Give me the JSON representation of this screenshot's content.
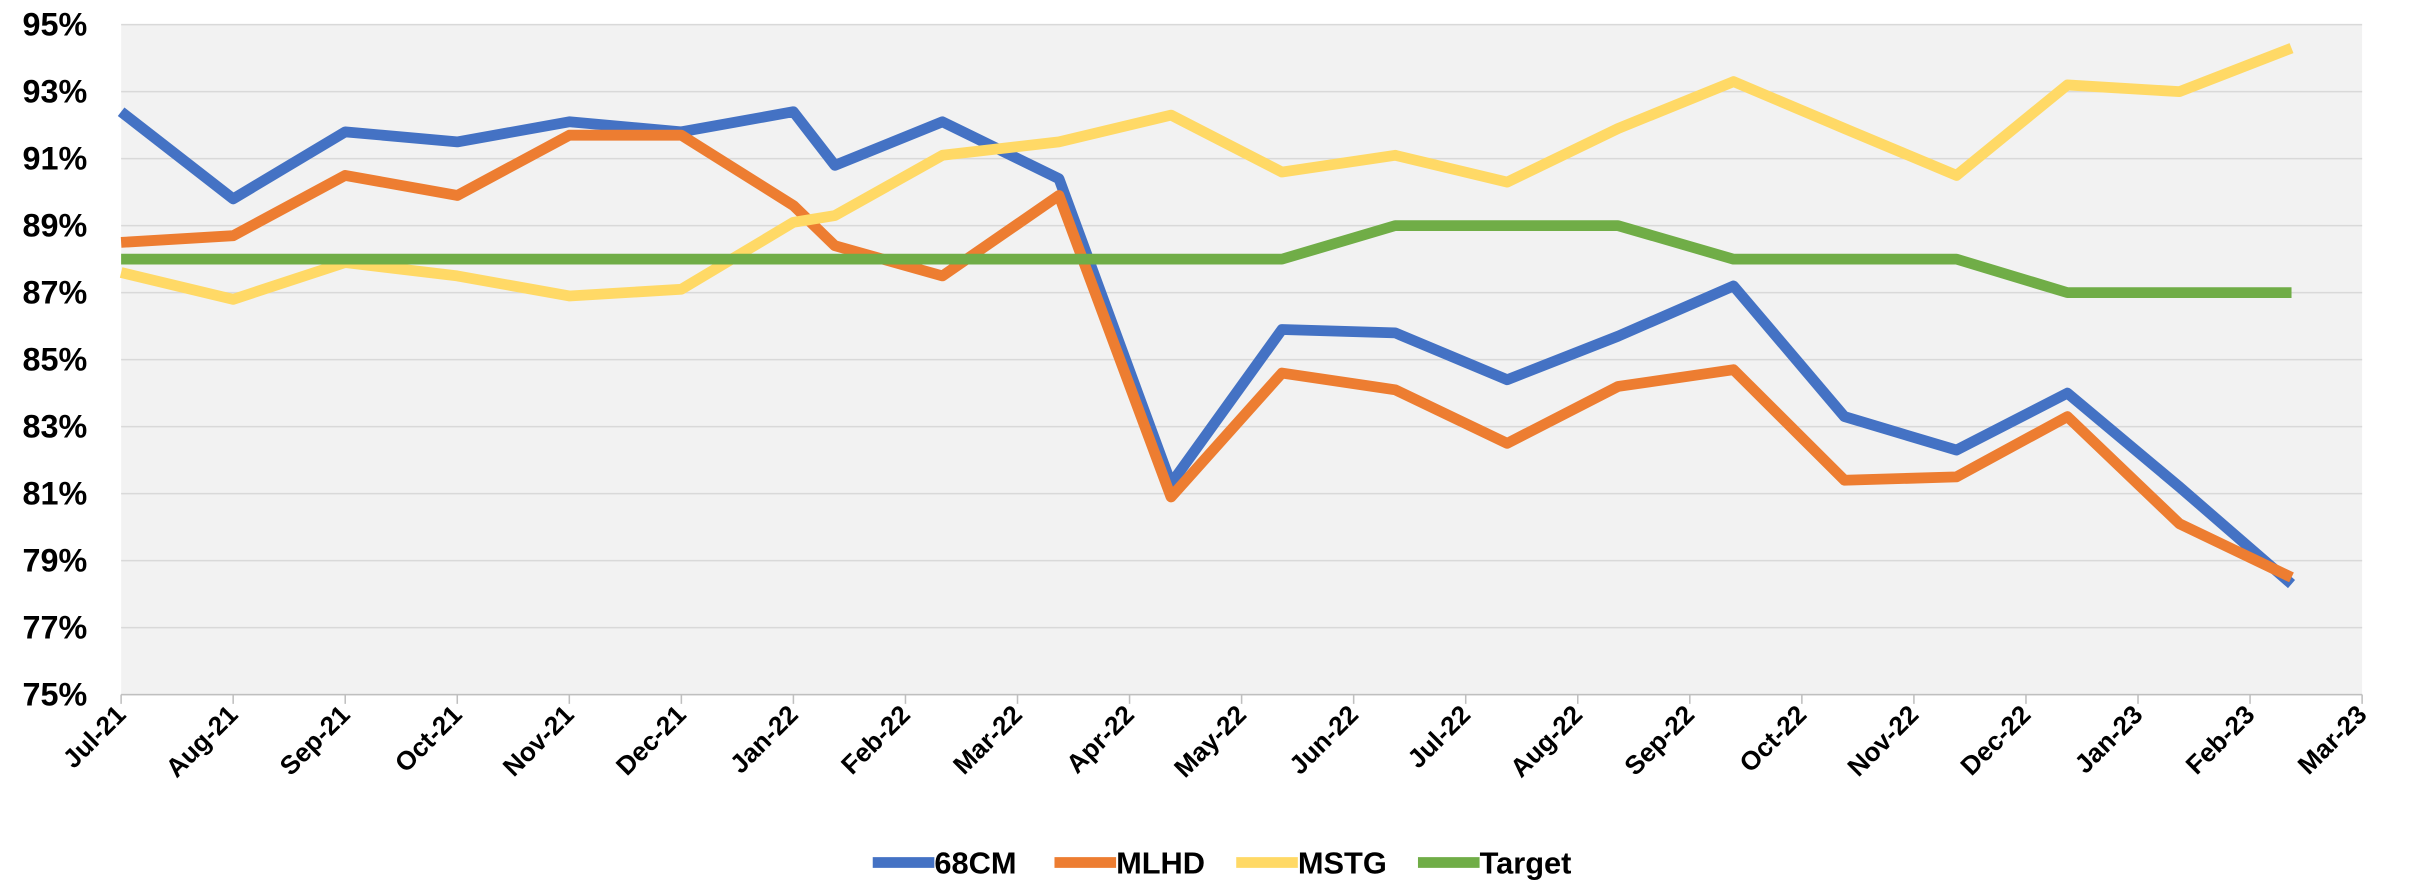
{
  "chart_data": {
    "type": "line",
    "x": [
      0,
      1,
      2,
      3,
      4,
      5,
      6,
      6.37,
      7.33,
      8.37,
      9.37,
      10.36,
      11.37,
      12.37,
      13.36,
      14.39,
      15.38,
      16.38,
      17.37,
      18.37,
      19.37
    ],
    "xlim": [
      0,
      20
    ],
    "xticks": [
      {
        "value": 0,
        "label": "Jul-21"
      },
      {
        "value": 1,
        "label": "Aug-21"
      },
      {
        "value": 2,
        "label": "Sep-21"
      },
      {
        "value": 3,
        "label": "Oct-21"
      },
      {
        "value": 4,
        "label": "Nov-21"
      },
      {
        "value": 5,
        "label": "Dec-21"
      },
      {
        "value": 6,
        "label": "Jan-22"
      },
      {
        "value": 7,
        "label": "Feb-22"
      },
      {
        "value": 8,
        "label": "Mar-22"
      },
      {
        "value": 9,
        "label": "Apr-22"
      },
      {
        "value": 10,
        "label": "May-22"
      },
      {
        "value": 11,
        "label": "Jun-22"
      },
      {
        "value": 12,
        "label": "Jul-22"
      },
      {
        "value": 13,
        "label": "Aug-22"
      },
      {
        "value": 14,
        "label": "Sep-22"
      },
      {
        "value": 15,
        "label": "Oct-22"
      },
      {
        "value": 16,
        "label": "Nov-22"
      },
      {
        "value": 17,
        "label": "Dec-22"
      },
      {
        "value": 18,
        "label": "Jan-23"
      },
      {
        "value": 19,
        "label": "Feb-23"
      },
      {
        "value": 20,
        "label": "Mar-23"
      }
    ],
    "ylim": [
      75,
      95
    ],
    "yticks": [
      {
        "value": 75,
        "label": "75%"
      },
      {
        "value": 77,
        "label": "77%"
      },
      {
        "value": 79,
        "label": "79%"
      },
      {
        "value": 81,
        "label": "81%"
      },
      {
        "value": 83,
        "label": "83%"
      },
      {
        "value": 85,
        "label": "85%"
      },
      {
        "value": 87,
        "label": "87%"
      },
      {
        "value": 89,
        "label": "89%"
      },
      {
        "value": 91,
        "label": "91%"
      },
      {
        "value": 93,
        "label": "93%"
      },
      {
        "value": 95,
        "label": "95%"
      }
    ],
    "grid": true,
    "legend": "bottom",
    "series": [
      {
        "name": "68CM",
        "color": "#4472c4",
        "values": [
          92.4,
          89.8,
          91.8,
          91.5,
          92.1,
          91.8,
          92.4,
          90.8,
          92.1,
          90.4,
          81.3,
          85.9,
          85.8,
          84.4,
          85.7,
          87.2,
          83.3,
          82.3,
          84.0,
          81.2,
          78.3
        ]
      },
      {
        "name": "MLHD",
        "color": "#ed7d31",
        "values": [
          88.5,
          88.7,
          90.5,
          89.9,
          91.7,
          91.7,
          89.6,
          88.4,
          87.5,
          89.9,
          80.9,
          84.6,
          84.1,
          82.5,
          84.2,
          84.7,
          81.4,
          81.5,
          83.3,
          80.1,
          78.5
        ]
      },
      {
        "name": "MSTG",
        "color": "#ffd966",
        "values": [
          87.6,
          86.8,
          87.9,
          87.5,
          86.9,
          87.1,
          89.1,
          89.3,
          91.1,
          91.5,
          92.3,
          90.6,
          91.1,
          90.3,
          91.9,
          93.3,
          91.9,
          90.5,
          93.2,
          93.0,
          94.3
        ]
      },
      {
        "name": "Target",
        "color": "#70ad47",
        "values": [
          88,
          88,
          88,
          88,
          88,
          88,
          88,
          88,
          88,
          88,
          88,
          88,
          89,
          89,
          89,
          88,
          88,
          88,
          87,
          87,
          87
        ]
      }
    ]
  }
}
